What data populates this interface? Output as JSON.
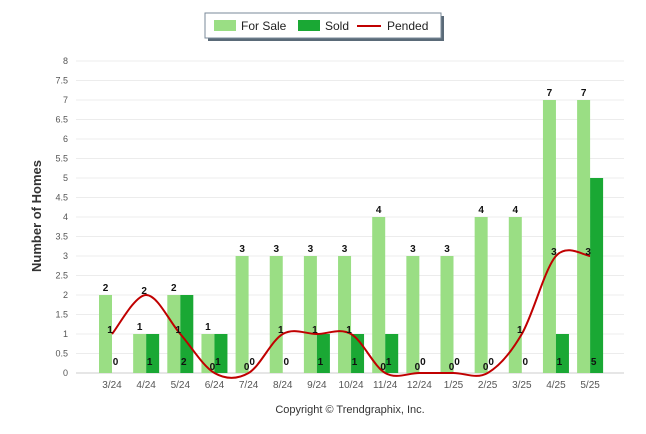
{
  "chart_data": {
    "type": "bar",
    "categories": [
      "3/24",
      "4/24",
      "5/24",
      "6/24",
      "7/24",
      "8/24",
      "9/24",
      "10/24",
      "11/24",
      "12/24",
      "1/25",
      "2/25",
      "3/25",
      "4/25",
      "5/25"
    ],
    "series": [
      {
        "name": "For Sale",
        "kind": "bar",
        "color": "#9ade84",
        "values": [
          2,
          1,
          2,
          1,
          3,
          3,
          3,
          3,
          4,
          3,
          3,
          4,
          4,
          7,
          7
        ]
      },
      {
        "name": "Sold",
        "kind": "bar",
        "color": "#1aa834",
        "values": [
          0,
          1,
          2,
          1,
          0,
          0,
          1,
          1,
          1,
          0,
          0,
          0,
          0,
          1,
          5
        ]
      },
      {
        "name": "Pended",
        "kind": "line",
        "color": "#c00000",
        "values": [
          1,
          2,
          1,
          0,
          0,
          1,
          1,
          1,
          0,
          0,
          0,
          0,
          1,
          3,
          3
        ]
      }
    ],
    "yticks": [
      "0",
      "0.5",
      "1",
      "1.5",
      "2",
      "2.5",
      "3",
      "3.5",
      "4",
      "4.5",
      "5",
      "5.5",
      "6",
      "6.5",
      "7",
      "7.5",
      "8"
    ],
    "ylim": [
      0,
      8
    ],
    "ylabel": "Number of Homes",
    "xlabel": "",
    "legend_position": "top-center",
    "grid": true
  },
  "footer": "Copyright © Trendgraphix, Inc."
}
